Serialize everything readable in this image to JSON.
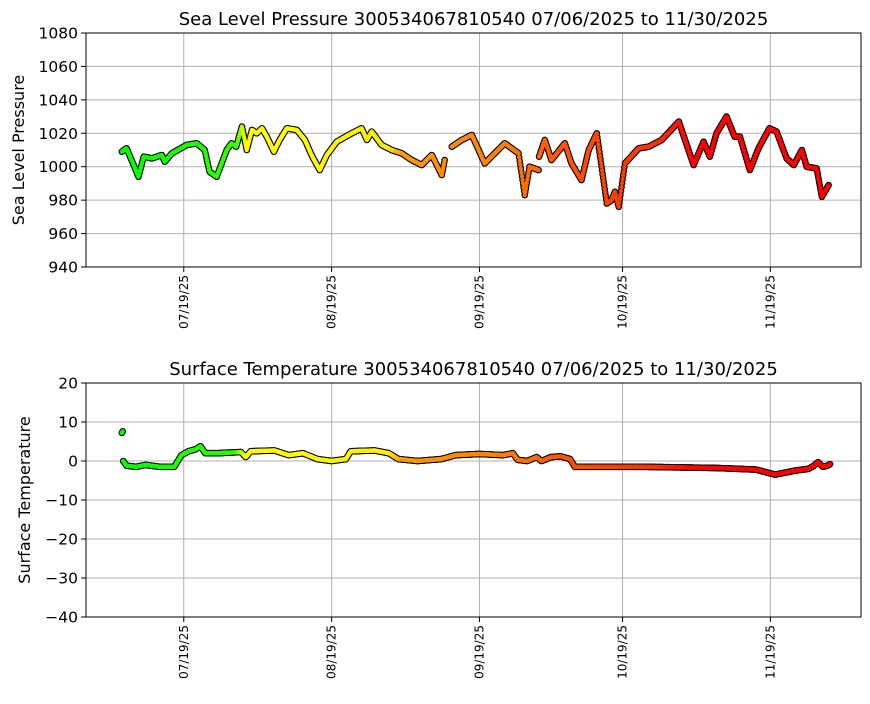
{
  "chart_data": [
    {
      "type": "scatter",
      "title": "Sea Level Pressure 300534067810540  07/06/2025 to 11/30/2025",
      "ylabel": "Sea Level Pressure",
      "xlabel": "",
      "ylim": [
        940,
        1080
      ],
      "yticks": [
        "940",
        "960",
        "980",
        "1000",
        "1020",
        "1040",
        "1060",
        "1080"
      ],
      "x_start_date": "07/06/2025",
      "x_unit": "days since 07/06/2025",
      "xlim": [
        -7.5,
        155
      ],
      "xticks": [
        {
          "day": 13,
          "label": "07/19/25"
        },
        {
          "day": 44,
          "label": "08/19/25"
        },
        {
          "day": 75,
          "label": "09/19/25"
        },
        {
          "day": 105,
          "label": "10/19/25"
        },
        {
          "day": 136,
          "label": "11/19/25"
        }
      ],
      "grid": true,
      "segments": [
        [
          [
            0,
            1009
          ],
          [
            1,
            1011
          ],
          [
            2.5,
            1001
          ],
          [
            3.5,
            994
          ],
          [
            4.6,
            1006
          ],
          [
            6.3,
            1005
          ],
          [
            8.4,
            1007
          ],
          [
            9,
            1003
          ],
          [
            10.5,
            1008
          ],
          [
            13.6,
            1013
          ],
          [
            15.7,
            1014
          ],
          [
            17.4,
            1010
          ],
          [
            18.4,
            997
          ],
          [
            19.9,
            994
          ],
          [
            22,
            1010
          ],
          [
            23,
            1014
          ],
          [
            24,
            1012
          ],
          [
            25.2,
            1024
          ],
          [
            26.2,
            1010
          ],
          [
            27.3,
            1022
          ],
          [
            28.3,
            1020
          ],
          [
            29.4,
            1023
          ],
          [
            30.4,
            1018
          ],
          [
            31.9,
            1009
          ],
          [
            33.1,
            1016
          ],
          [
            34.6,
            1023
          ],
          [
            36.7,
            1022
          ],
          [
            38.4,
            1016
          ],
          [
            39.8,
            1007
          ],
          [
            41.5,
            998
          ],
          [
            43,
            1007
          ],
          [
            45.1,
            1015
          ],
          [
            48.2,
            1020
          ],
          [
            50.3,
            1023
          ],
          [
            51.4,
            1016
          ],
          [
            52.4,
            1021
          ],
          [
            54.5,
            1013
          ],
          [
            56.6,
            1010
          ],
          [
            58.7,
            1008
          ],
          [
            60.8,
            1004
          ],
          [
            62.9,
            1001
          ],
          [
            65,
            1007
          ],
          [
            67.1,
            995
          ],
          [
            67.7,
            1004
          ]
        ],
        [
          [
            69.2,
            1012
          ],
          [
            71.3,
            1016
          ],
          [
            73.4,
            1019
          ],
          [
            76.1,
            1002
          ],
          [
            80.3,
            1014
          ],
          [
            83.2,
            1008
          ],
          [
            84.5,
            983
          ],
          [
            85.5,
            1000
          ],
          [
            87.4,
            998
          ]
        ],
        [
          [
            87.5,
            1006
          ],
          [
            88.7,
            1016
          ],
          [
            90.1,
            1004
          ],
          [
            92.9,
            1014
          ],
          [
            94.3,
            1002
          ],
          [
            96.4,
            992
          ],
          [
            97.9,
            1010
          ],
          [
            99.6,
            1020
          ],
          [
            100.6,
            1000
          ],
          [
            101.7,
            978
          ],
          [
            102.7,
            980
          ],
          [
            103.4,
            985
          ],
          [
            104.2,
            976
          ],
          [
            105.5,
            1002
          ],
          [
            108.4,
            1011
          ],
          [
            110.5,
            1012
          ],
          [
            113.2,
            1016
          ],
          [
            116.8,
            1027
          ],
          [
            119.9,
            1001
          ],
          [
            122,
            1015
          ],
          [
            123.3,
            1006
          ],
          [
            124.7,
            1020
          ],
          [
            126.8,
            1030
          ],
          [
            128.5,
            1018
          ],
          [
            129.6,
            1018
          ],
          [
            131.7,
            998
          ],
          [
            133.5,
            1011
          ],
          [
            135.8,
            1023
          ],
          [
            137.3,
            1021
          ],
          [
            139.4,
            1005
          ],
          [
            140.9,
            1001
          ],
          [
            142.6,
            1010
          ],
          [
            143.6,
            1000
          ],
          [
            145.7,
            999
          ],
          [
            146.8,
            982
          ],
          [
            148.2,
            989
          ]
        ]
      ]
    },
    {
      "type": "scatter",
      "title": "Surface Temperature 300534067810540  07/06/2025 to 11/30/2025",
      "ylabel": "Surface Temperature",
      "xlabel": "",
      "ylim": [
        -40,
        20
      ],
      "yticks": [
        "−40",
        "−30",
        "−20",
        "−10",
        "0",
        "10",
        "20"
      ],
      "x_start_date": "07/06/2025",
      "x_unit": "days since 07/06/2025",
      "xlim": [
        -7.5,
        155
      ],
      "xticks": [
        {
          "day": 13,
          "label": "07/19/25"
        },
        {
          "day": 44,
          "label": "08/19/25"
        },
        {
          "day": 75,
          "label": "09/19/25"
        },
        {
          "day": 105,
          "label": "10/19/25"
        },
        {
          "day": 136,
          "label": "11/19/25"
        }
      ],
      "grid": true,
      "segments": [
        [
          [
            0,
            7.2
          ],
          [
            0.2,
            7.6
          ]
        ],
        [
          [
            0.3,
            0
          ],
          [
            1,
            -1.2
          ],
          [
            3,
            -1.5
          ],
          [
            5,
            -1
          ],
          [
            8,
            -1.5
          ],
          [
            11,
            -1.5
          ],
          [
            12.5,
            1.5
          ],
          [
            14,
            2.5
          ],
          [
            15.5,
            3
          ],
          [
            16.5,
            3.8
          ],
          [
            17.5,
            2
          ],
          [
            20,
            2
          ],
          [
            25,
            2.3
          ],
          [
            26,
            1
          ],
          [
            27,
            2.5
          ],
          [
            32,
            2.7
          ],
          [
            35,
            1.5
          ],
          [
            38,
            2
          ],
          [
            41,
            0.5
          ],
          [
            44,
            0
          ],
          [
            47,
            0.5
          ],
          [
            48,
            2.5
          ],
          [
            53,
            2.7
          ],
          [
            56,
            2
          ],
          [
            58,
            0.5
          ],
          [
            62,
            0
          ],
          [
            67,
            0.5
          ],
          [
            70,
            1.5
          ],
          [
            75,
            1.8
          ],
          [
            80,
            1.5
          ],
          [
            82,
            2
          ],
          [
            83,
            0.3
          ],
          [
            85,
            0
          ],
          [
            87,
            1
          ],
          [
            88,
            0
          ],
          [
            90,
            1
          ],
          [
            92,
            1.2
          ],
          [
            94,
            0.5
          ],
          [
            95,
            -1.5
          ],
          [
            110,
            -1.5
          ],
          [
            125,
            -1.8
          ],
          [
            133,
            -2.2
          ],
          [
            137,
            -3.5
          ],
          [
            141,
            -2.5
          ],
          [
            144,
            -2
          ],
          [
            145,
            -1.3
          ],
          [
            146,
            -0.3
          ],
          [
            147,
            -1.5
          ],
          [
            148,
            -1.2
          ],
          [
            148.5,
            -0.8
          ]
        ]
      ]
    }
  ],
  "color_stops": [
    {
      "day": 0,
      "color": "#00ff00"
    },
    {
      "day": 24,
      "color": "#33ff00"
    },
    {
      "day": 26,
      "color": "#ffff00"
    },
    {
      "day": 56,
      "color": "#ffee00"
    },
    {
      "day": 59,
      "color": "#ff9900"
    },
    {
      "day": 80,
      "color": "#ff8000"
    },
    {
      "day": 92,
      "color": "#ff5500"
    },
    {
      "day": 112,
      "color": "#ff3300"
    },
    {
      "day": 120,
      "color": "#ff0000"
    },
    {
      "day": 160,
      "color": "#ff0000"
    }
  ]
}
